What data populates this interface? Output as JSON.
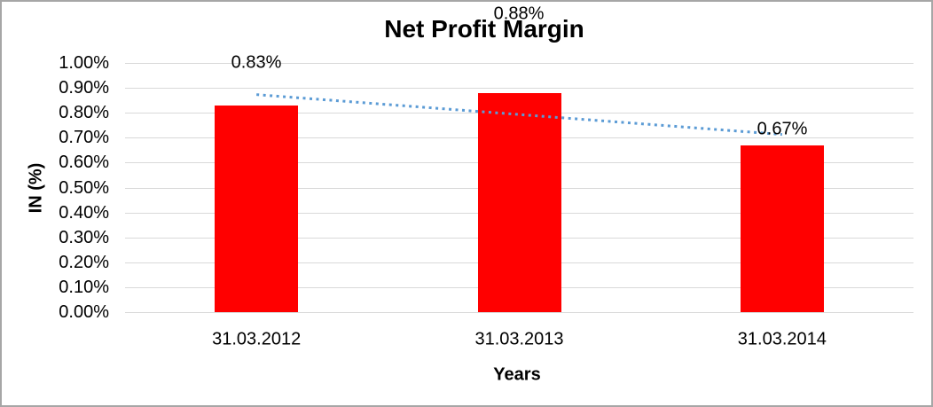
{
  "chart_data": {
    "type": "bar",
    "title": "Net Profit Margin",
    "xlabel": "Years",
    "ylabel": "IN (%)",
    "categories": [
      "31.03.2012",
      "31.03.2013",
      "31.03.2014"
    ],
    "values": [
      0.83,
      0.88,
      0.67
    ],
    "data_labels": [
      "0.83%",
      "0.88%",
      "0.67%"
    ],
    "y_ticks": [
      "1.00%",
      "0.90%",
      "0.80%",
      "0.70%",
      "0.60%",
      "0.50%",
      "0.40%",
      "0.30%",
      "0.20%",
      "0.10%",
      "0.00%"
    ],
    "ylim": [
      0,
      1.0
    ],
    "grid": true,
    "legend": "none",
    "bar_color": "#ff0000",
    "gridline_color": "#d9d9d9",
    "trendline": {
      "type": "linear",
      "style": "dotted",
      "color": "#5b9bd5",
      "start_value": 0.873,
      "end_value": 0.713
    }
  }
}
